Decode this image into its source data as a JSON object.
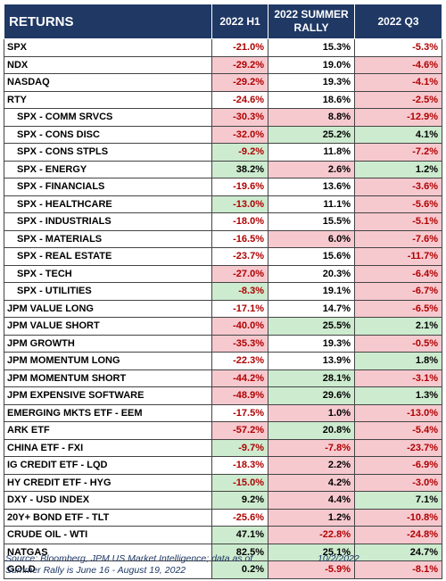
{
  "header": {
    "col_label": "RETURNS",
    "col_h1": "2022 H1",
    "col_summer_line1": "2022 SUMMER",
    "col_summer_line2": "RALLY",
    "col_q3": "2022 Q3"
  },
  "rows": [
    {
      "label": "SPX",
      "indent": false,
      "h1": "-21.0%",
      "summer": "15.3%",
      "q3": "-5.3%",
      "h1_bg": "white",
      "summer_bg": "white",
      "q3_bg": "white"
    },
    {
      "label": "NDX",
      "indent": false,
      "h1": "-29.2%",
      "summer": "19.0%",
      "q3": "-4.6%",
      "h1_bg": "red",
      "summer_bg": "white",
      "q3_bg": "red"
    },
    {
      "label": "NASDAQ",
      "indent": false,
      "h1": "-29.2%",
      "summer": "19.3%",
      "q3": "-4.1%",
      "h1_bg": "red",
      "summer_bg": "white",
      "q3_bg": "red"
    },
    {
      "label": "RTY",
      "indent": false,
      "h1": "-24.6%",
      "summer": "18.6%",
      "q3": "-2.5%",
      "h1_bg": "white",
      "summer_bg": "white",
      "q3_bg": "red"
    },
    {
      "label": "SPX - COMM SRVCS",
      "indent": true,
      "h1": "-30.3%",
      "summer": "8.8%",
      "q3": "-12.9%",
      "h1_bg": "red",
      "summer_bg": "red",
      "q3_bg": "red"
    },
    {
      "label": "SPX - CONS DISC",
      "indent": true,
      "h1": "-32.0%",
      "summer": "25.2%",
      "q3": "4.1%",
      "h1_bg": "red",
      "summer_bg": "green",
      "q3_bg": "green"
    },
    {
      "label": "SPX - CONS STPLS",
      "indent": true,
      "h1": "-9.2%",
      "summer": "11.8%",
      "q3": "-7.2%",
      "h1_bg": "green",
      "summer_bg": "white",
      "q3_bg": "red"
    },
    {
      "label": "SPX - ENERGY",
      "indent": true,
      "h1": "38.2%",
      "summer": "2.6%",
      "q3": "1.2%",
      "h1_bg": "green",
      "summer_bg": "red",
      "q3_bg": "green"
    },
    {
      "label": "SPX - FINANCIALS",
      "indent": true,
      "h1": "-19.6%",
      "summer": "13.6%",
      "q3": "-3.6%",
      "h1_bg": "white",
      "summer_bg": "white",
      "q3_bg": "red"
    },
    {
      "label": "SPX - HEALTHCARE",
      "indent": true,
      "h1": "-13.0%",
      "summer": "11.1%",
      "q3": "-5.6%",
      "h1_bg": "green",
      "summer_bg": "white",
      "q3_bg": "red"
    },
    {
      "label": "SPX - INDUSTRIALS",
      "indent": true,
      "h1": "-18.0%",
      "summer": "15.5%",
      "q3": "-5.1%",
      "h1_bg": "white",
      "summer_bg": "white",
      "q3_bg": "red"
    },
    {
      "label": "SPX - MATERIALS",
      "indent": true,
      "h1": "-16.5%",
      "summer": "6.0%",
      "q3": "-7.6%",
      "h1_bg": "white",
      "summer_bg": "red",
      "q3_bg": "red"
    },
    {
      "label": "SPX - REAL ESTATE",
      "indent": true,
      "h1": "-23.7%",
      "summer": "15.6%",
      "q3": "-11.7%",
      "h1_bg": "white",
      "summer_bg": "white",
      "q3_bg": "red"
    },
    {
      "label": "SPX - TECH",
      "indent": true,
      "h1": "-27.0%",
      "summer": "20.3%",
      "q3": "-6.4%",
      "h1_bg": "red",
      "summer_bg": "white",
      "q3_bg": "red"
    },
    {
      "label": "SPX - UTILITIES",
      "indent": true,
      "h1": "-8.3%",
      "summer": "19.1%",
      "q3": "-6.7%",
      "h1_bg": "green",
      "summer_bg": "white",
      "q3_bg": "red"
    },
    {
      "label": "JPM VALUE LONG",
      "indent": false,
      "h1": "-17.1%",
      "summer": "14.7%",
      "q3": "-6.5%",
      "h1_bg": "white",
      "summer_bg": "white",
      "q3_bg": "red"
    },
    {
      "label": "JPM VALUE SHORT",
      "indent": false,
      "h1": "-40.0%",
      "summer": "25.5%",
      "q3": "2.1%",
      "h1_bg": "red",
      "summer_bg": "green",
      "q3_bg": "green"
    },
    {
      "label": "JPM GROWTH",
      "indent": false,
      "h1": "-35.3%",
      "summer": "19.3%",
      "q3": "-0.5%",
      "h1_bg": "red",
      "summer_bg": "white",
      "q3_bg": "red"
    },
    {
      "label": "JPM MOMENTUM LONG",
      "indent": false,
      "h1": "-22.3%",
      "summer": "13.9%",
      "q3": "1.8%",
      "h1_bg": "white",
      "summer_bg": "white",
      "q3_bg": "green"
    },
    {
      "label": "JPM MOMENTUM SHORT",
      "indent": false,
      "h1": "-44.2%",
      "summer": "28.1%",
      "q3": "-3.1%",
      "h1_bg": "red",
      "summer_bg": "green",
      "q3_bg": "red"
    },
    {
      "label": "JPM EXPENSIVE SOFTWARE",
      "indent": false,
      "h1": "-48.9%",
      "summer": "29.6%",
      "q3": "1.3%",
      "h1_bg": "red",
      "summer_bg": "green",
      "q3_bg": "green"
    },
    {
      "label": "EMERGING MKTS ETF - EEM",
      "indent": false,
      "h1": "-17.5%",
      "summer": "1.0%",
      "q3": "-13.0%",
      "h1_bg": "white",
      "summer_bg": "red",
      "q3_bg": "red"
    },
    {
      "label": "ARK ETF",
      "indent": false,
      "h1": "-57.2%",
      "summer": "20.8%",
      "q3": "-5.4%",
      "h1_bg": "red",
      "summer_bg": "green",
      "q3_bg": "red"
    },
    {
      "label": "CHINA ETF - FXI",
      "indent": false,
      "h1": "-9.7%",
      "summer": "-7.8%",
      "q3": "-23.7%",
      "h1_bg": "green",
      "summer_bg": "red",
      "q3_bg": "red"
    },
    {
      "label": "IG CREDIT ETF - LQD",
      "indent": false,
      "h1": "-18.3%",
      "summer": "2.2%",
      "q3": "-6.9%",
      "h1_bg": "white",
      "summer_bg": "red",
      "q3_bg": "red"
    },
    {
      "label": "HY CREDIT ETF - HYG",
      "indent": false,
      "h1": "-15.0%",
      "summer": "4.2%",
      "q3": "-3.0%",
      "h1_bg": "green",
      "summer_bg": "red",
      "q3_bg": "red"
    },
    {
      "label": "DXY - USD INDEX",
      "indent": false,
      "h1": "9.2%",
      "summer": "4.4%",
      "q3": "7.1%",
      "h1_bg": "green",
      "summer_bg": "red",
      "q3_bg": "green"
    },
    {
      "label": "20Y+ BOND ETF - TLT",
      "indent": false,
      "h1": "-25.6%",
      "summer": "1.2%",
      "q3": "-10.8%",
      "h1_bg": "white",
      "summer_bg": "red",
      "q3_bg": "red"
    },
    {
      "label": "CRUDE OIL - WTI",
      "indent": false,
      "h1": "47.1%",
      "summer": "-22.8%",
      "q3": "-24.8%",
      "h1_bg": "green",
      "summer_bg": "red",
      "q3_bg": "red"
    },
    {
      "label": "NATGAS",
      "indent": false,
      "h1": "82.5%",
      "summer": "25.1%",
      "q3": "24.7%",
      "h1_bg": "green",
      "summer_bg": "green",
      "q3_bg": "green"
    },
    {
      "label": "GOLD",
      "indent": false,
      "h1": "0.2%",
      "summer": "-5.9%",
      "q3": "-8.1%",
      "h1_bg": "green",
      "summer_bg": "red",
      "q3_bg": "red"
    }
  ],
  "footer": {
    "source_line1": "Source: Bloomberg, JPM US Market Intelligence; data as of",
    "date": "10/2/2022",
    "source_line2": "Summer Rally is June 16 - August 19, 2022"
  },
  "colors": {
    "header_bg": "#1f3864",
    "header_text": "#ffffff",
    "neg_fill": "#f6c9cf",
    "pos_fill": "#cdebcf",
    "neg_text": "#b00000"
  }
}
